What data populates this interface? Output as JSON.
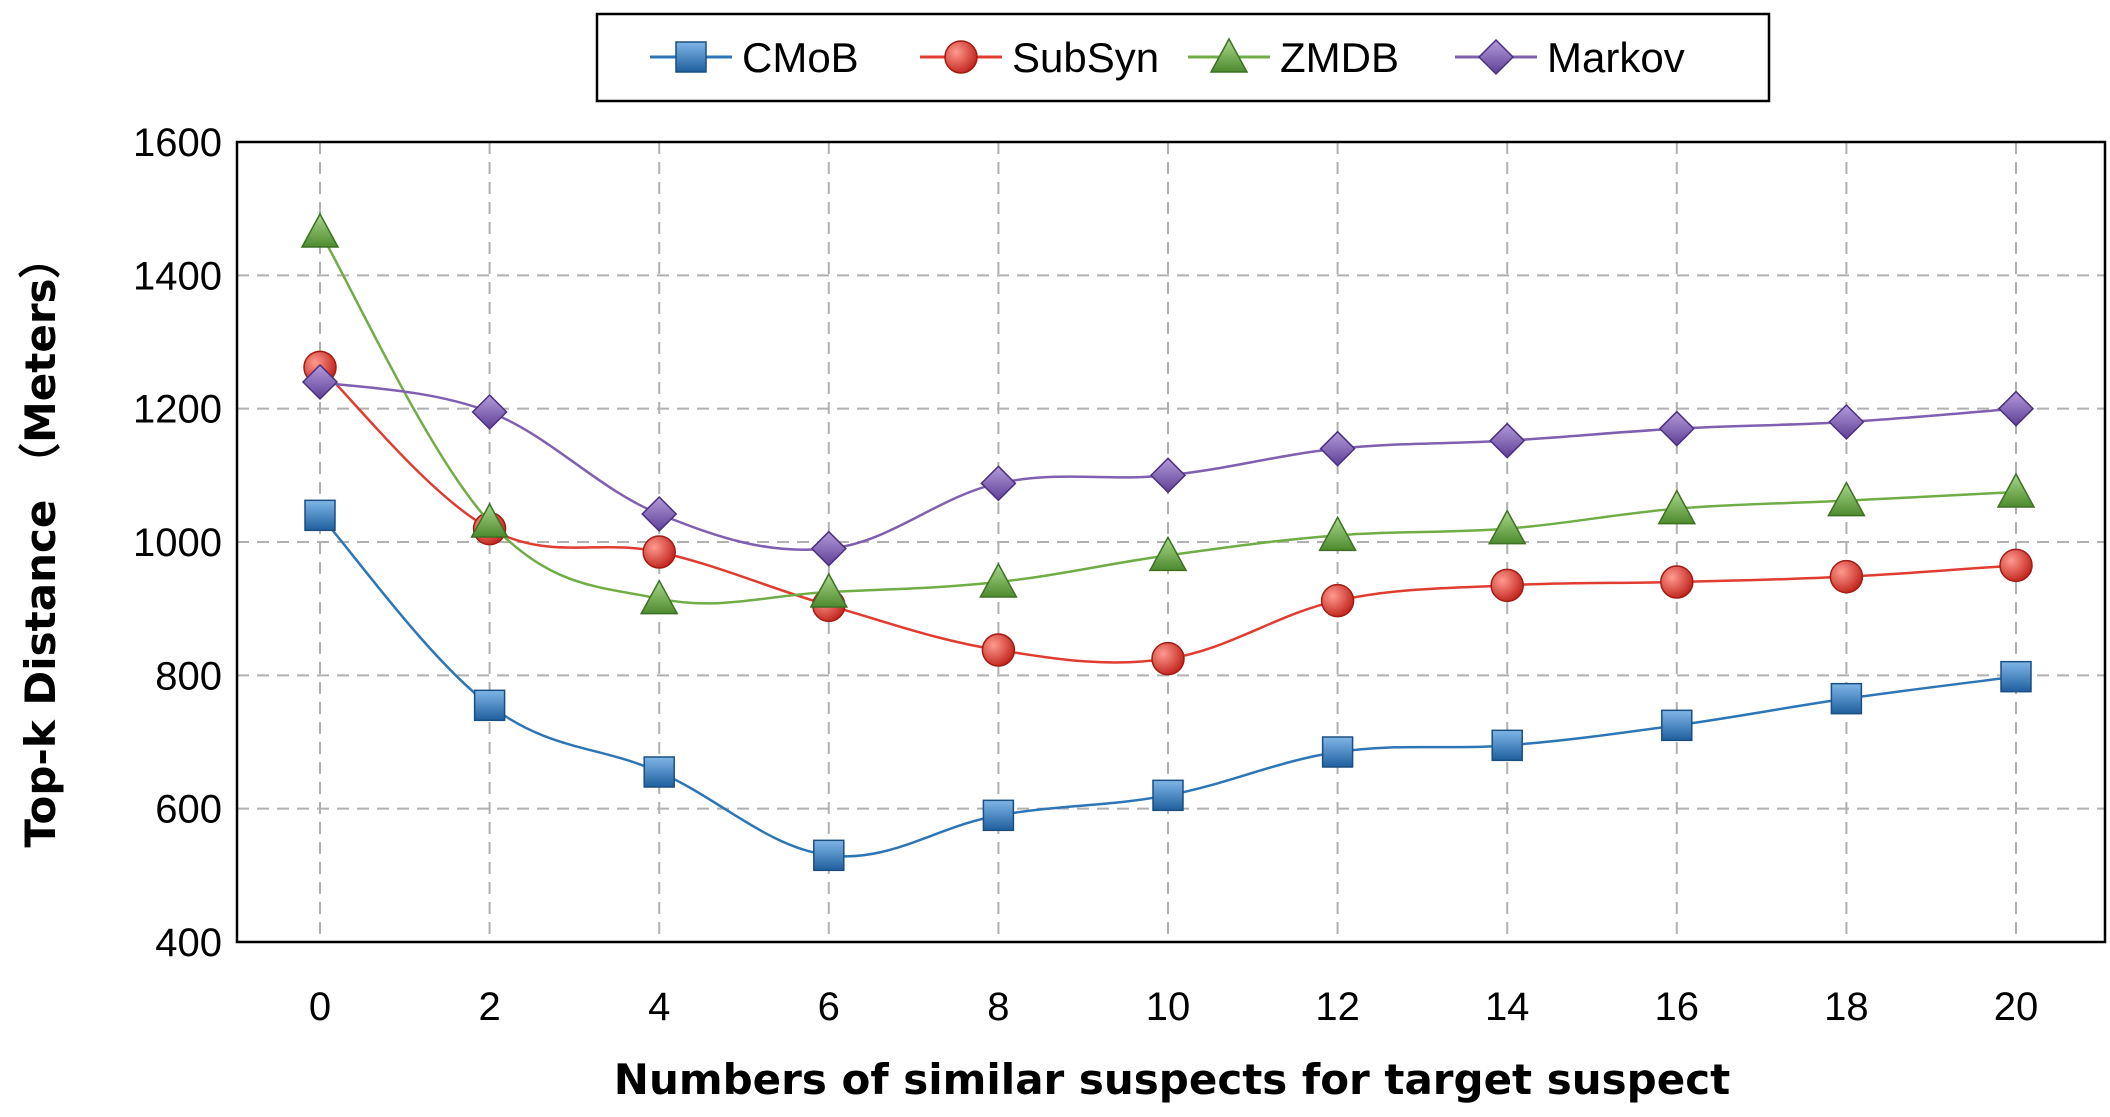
{
  "chart_data": {
    "type": "line",
    "title": "",
    "xlabel": "Numbers of similar suspects for target suspect",
    "ylabel": "Top-k Distance （Meters）",
    "x": [
      0,
      2,
      4,
      6,
      8,
      10,
      12,
      14,
      16,
      18,
      20
    ],
    "x_tick_labels": [
      "0",
      "2",
      "4",
      "6",
      "8",
      "10",
      "12",
      "14",
      "16",
      "18",
      "20"
    ],
    "y_tick_labels": [
      "400",
      "600",
      "800",
      "1000",
      "1200",
      "1400",
      "1600"
    ],
    "ylim": [
      400,
      1600
    ],
    "y_ticks": [
      400,
      600,
      800,
      1000,
      1200,
      1400,
      1600
    ],
    "grid": true,
    "legend_position": "top-center",
    "series": [
      {
        "name": "CMoB",
        "color": "#2E75B6",
        "marker": "square",
        "values": [
          1040,
          755,
          655,
          530,
          590,
          620,
          685,
          695,
          725,
          765,
          798
        ]
      },
      {
        "name": "SubSyn",
        "color": "#E03C31",
        "marker": "circle",
        "values": [
          1262,
          1020,
          985,
          905,
          838,
          825,
          912,
          935,
          940,
          948,
          965
        ]
      },
      {
        "name": "ZMDB",
        "color": "#70AD47",
        "marker": "triangle",
        "values": [
          1465,
          1030,
          915,
          925,
          940,
          980,
          1010,
          1020,
          1050,
          1062,
          1075
        ]
      },
      {
        "name": "Markov",
        "color": "#7F5FAF",
        "marker": "diamond",
        "values": [
          1240,
          1195,
          1042,
          990,
          1088,
          1100,
          1140,
          1152,
          1170,
          1180,
          1200
        ]
      }
    ]
  }
}
